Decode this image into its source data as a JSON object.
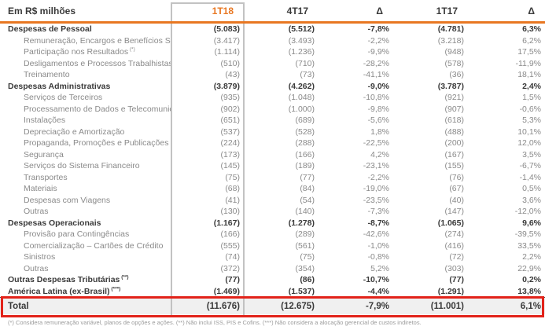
{
  "colors": {
    "accent_orange": "#E87722",
    "highlight_red": "#E2231A",
    "column_box_border": "#C2C2C2",
    "total_row_bg": "#F0F0F0",
    "bold_text": "#3A3A3A",
    "gray_text": "#8A8A8A"
  },
  "table": {
    "header": {
      "label": "Em R$ milhões",
      "columns": [
        "1T18",
        "4T17",
        "Δ",
        "1T17",
        "Δ"
      ],
      "highlighted_column": "1T18"
    },
    "rows": [
      {
        "label": "Despesas de Pessoal",
        "bold": true,
        "values": [
          "(5.083)",
          "(5.512)",
          "-7,8%",
          "(4.781)",
          "6,3%"
        ]
      },
      {
        "label": "Remuneração, Encargos e Benefícios Sociais",
        "bold": false,
        "values": [
          "(3.417)",
          "(3.493)",
          "-2,2%",
          "(3.218)",
          "6,2%"
        ]
      },
      {
        "label": "Participação nos Resultados",
        "sup": "(*)",
        "bold": false,
        "values": [
          "(1.114)",
          "(1.236)",
          "-9,9%",
          "(948)",
          "17,5%"
        ]
      },
      {
        "label": "Desligamentos e Processos Trabalhistas",
        "bold": false,
        "values": [
          "(510)",
          "(710)",
          "-28,2%",
          "(578)",
          "-11,9%"
        ]
      },
      {
        "label": "Treinamento",
        "bold": false,
        "values": [
          "(43)",
          "(73)",
          "-41,1%",
          "(36)",
          "18,1%"
        ]
      },
      {
        "label": "Despesas Administrativas",
        "bold": true,
        "values": [
          "(3.879)",
          "(4.262)",
          "-9,0%",
          "(3.787)",
          "2,4%"
        ]
      },
      {
        "label": "Serviços de Terceiros",
        "bold": false,
        "values": [
          "(935)",
          "(1.048)",
          "-10,8%",
          "(921)",
          "1,5%"
        ]
      },
      {
        "label": "Processamento de Dados e Telecomunicações",
        "bold": false,
        "values": [
          "(902)",
          "(1.000)",
          "-9,8%",
          "(907)",
          "-0,6%"
        ]
      },
      {
        "label": "Instalações",
        "bold": false,
        "values": [
          "(651)",
          "(689)",
          "-5,6%",
          "(618)",
          "5,3%"
        ]
      },
      {
        "label": "Depreciação e Amortização",
        "bold": false,
        "values": [
          "(537)",
          "(528)",
          "1,8%",
          "(488)",
          "10,1%"
        ]
      },
      {
        "label": "Propaganda, Promoções e Publicações",
        "bold": false,
        "values": [
          "(224)",
          "(288)",
          "-22,5%",
          "(200)",
          "12,0%"
        ]
      },
      {
        "label": "Segurança",
        "bold": false,
        "values": [
          "(173)",
          "(166)",
          "4,2%",
          "(167)",
          "3,5%"
        ]
      },
      {
        "label": "Serviços do Sistema Financeiro",
        "bold": false,
        "values": [
          "(145)",
          "(189)",
          "-23,1%",
          "(155)",
          "-6,7%"
        ]
      },
      {
        "label": "Transportes",
        "bold": false,
        "values": [
          "(75)",
          "(77)",
          "-2,2%",
          "(76)",
          "-1,4%"
        ]
      },
      {
        "label": "Materiais",
        "bold": false,
        "values": [
          "(68)",
          "(84)",
          "-19,0%",
          "(67)",
          "0,5%"
        ]
      },
      {
        "label": "Despesas com Viagens",
        "bold": false,
        "values": [
          "(41)",
          "(54)",
          "-23,5%",
          "(40)",
          "3,6%"
        ]
      },
      {
        "label": "Outras",
        "bold": false,
        "values": [
          "(130)",
          "(140)",
          "-7,3%",
          "(147)",
          "-12,0%"
        ]
      },
      {
        "label": "Despesas Operacionais",
        "bold": true,
        "values": [
          "(1.167)",
          "(1.278)",
          "-8,7%",
          "(1.065)",
          "9,6%"
        ]
      },
      {
        "label": "Provisão para Contingências",
        "bold": false,
        "values": [
          "(166)",
          "(289)",
          "-42,6%",
          "(274)",
          "-39,5%"
        ]
      },
      {
        "label": "Comercialização – Cartões de Crédito",
        "bold": false,
        "values": [
          "(555)",
          "(561)",
          "-1,0%",
          "(416)",
          "33,5%"
        ]
      },
      {
        "label": "Sinistros",
        "bold": false,
        "values": [
          "(74)",
          "(75)",
          "-0,8%",
          "(72)",
          "2,2%"
        ]
      },
      {
        "label": "Outras",
        "bold": false,
        "values": [
          "(372)",
          "(354)",
          "5,2%",
          "(303)",
          "22,9%"
        ]
      },
      {
        "label": "Outras Despesas Tributárias",
        "sup": "(**)",
        "bold": true,
        "values": [
          "(77)",
          "(86)",
          "-10,7%",
          "(77)",
          "0,2%"
        ]
      },
      {
        "label": "América Latina (ex-Brasil)",
        "sup": "(***)",
        "bold": true,
        "values": [
          "(1.469)",
          "(1.537)",
          "-4,4%",
          "(1.291)",
          "13,8%"
        ]
      }
    ],
    "total": {
      "label": "Total",
      "values": [
        "(11.676)",
        "(12.675)",
        "-7,9%",
        "(11.001)",
        "6,1%"
      ]
    },
    "footnote": "(*) Considera remuneração variável, planos de opções e ações. (**) Não inclui ISS, PIS e Cofins. (***) Não considera a alocação gerencial de custos indiretos."
  }
}
